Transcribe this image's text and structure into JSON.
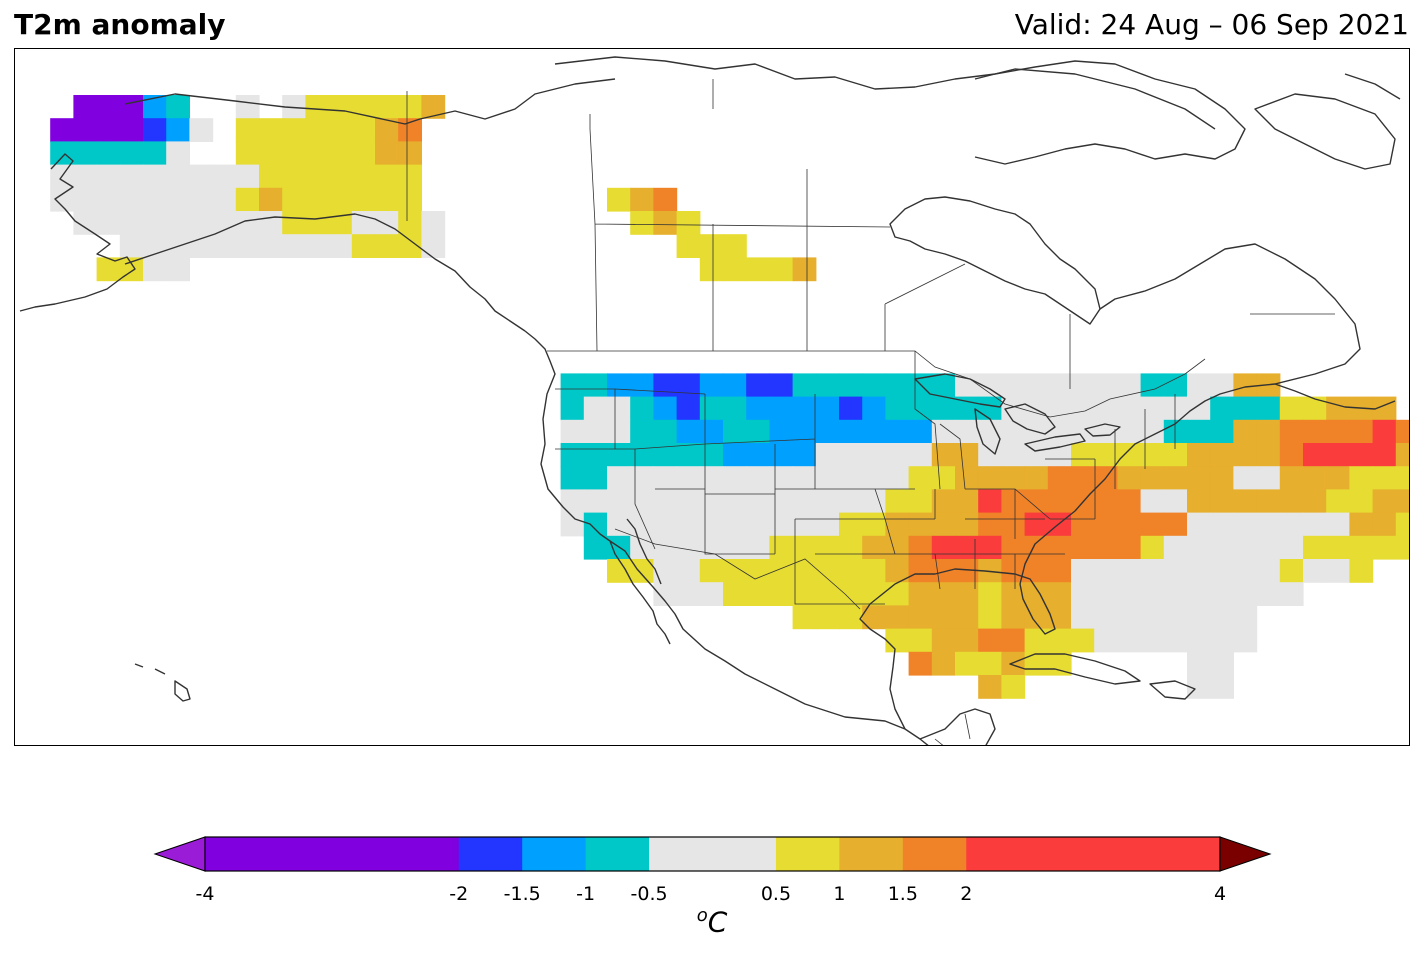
{
  "title": "T2m anomaly",
  "valid": "Valid: 24 Aug – 06 Sep 2021",
  "colorbar": {
    "unit_main": "C",
    "unit_sup": "o",
    "bounds": [
      -4,
      -2,
      -1.5,
      -1,
      -0.5,
      0.5,
      1,
      1.5,
      2,
      4
    ],
    "tick_labels": [
      "-4",
      "-2",
      "-1.5",
      "-1",
      "-0.5",
      "0.5",
      "1",
      "1.5",
      "2",
      "4"
    ],
    "colors": [
      "#8000e0",
      "#2236ff",
      "#00a0ff",
      "#00c8c8",
      "#e6e6e6",
      "#e6dc32",
      "#e6af2d",
      "#f08228",
      "#fa3c3c"
    ],
    "under_color": "#9a1cd6",
    "over_color": "#7a0000"
  },
  "palette": {
    "P": "#8000e0",
    "B": "#2236ff",
    "L": "#00a0ff",
    "T": "#00c8c8",
    "G": "#e6e6e6",
    "Y": "#e6dc32",
    "O": "#e6af2d",
    "D": "#f08228",
    "R": "#fa3c3c"
  },
  "anomaly_grid": {
    "rows": [
      "  PPPLT  G GYYYYYO",
      " PPPPBLG YYYYYYOD",
      " TTTTTG  YYYYYYOO",
      " GGGGGGGGGYYYYYYY",
      " GGGGGGGGYOYYYYYY        YOD",
      "  GGGGGGGGGYYYGGYG        YOY",
      "    GGGGGGGGGGYYYG          YYY",
      "   YYGG                      YYYYO",
      "",
      "",
      "",
      "",
      "                       TTLLBBLLBBTTTTTTTGGGGGGGGTTGGOO",
      "                       TGGTLBTTLLLLBLTTTTTGGGGGGGGGTTTYYOOO",
      "                       GGGTTLLTTLLLLLLLGGGGGGGGGGTTTOODDDDRDRDRR",
      "                       TTTTTTTLLLLGGGGGOOGGGGYYYYYOOOODRRRROOOYYYYYR",
      "                       TTGGGGGGGGGGGGGYYOOOODDDOOOOOGGOOOYYYOOOOOOYYOYY",
      "                       GGGGGGGGGGGGGGYYOORDDDDDDGGOOOOOOYYOOOYYOYY",
      "                       GTGGGGGGGGGGYYOOOODDRRDDDDDGGGGGGGOOYOOOOO",
      "                        TTGGGGGGYYYYOODRRRDDDDDDYGGGGGGYYYYY",
      "                         YYGGYYYYYYYYODDDODDDGGGGGGGGGYGGY",
      "                           GGGYYYYYYYYOOOYOOOGGGGGGGGGG",
      "                                 YYYOOOOOYOOOGGGGGGGG",
      "                                     YYOODDYYYGGGGGGG",
      "                                      DOYYOYY     GG",
      "                                         OY       GG"
    ]
  }
}
